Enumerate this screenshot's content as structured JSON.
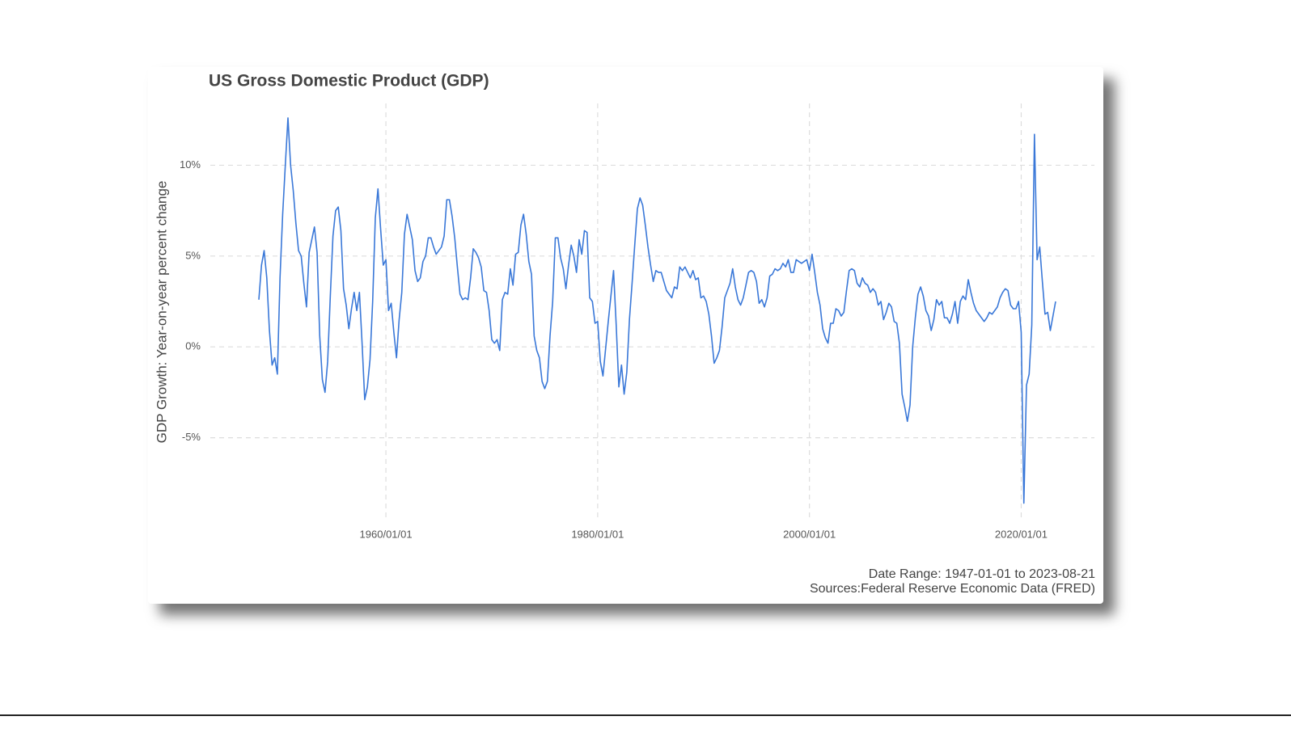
{
  "chart_data": {
    "type": "line",
    "title": "US Gross Domestic Product (GDP)",
    "y_label": "GDP Growth: Year-on-year percent change",
    "caption": [
      "Date Range: 1947-01-01 to 2023-08-21",
      "Sources:Federal Reserve Economic Data (FRED)"
    ],
    "color": "#3a78d8",
    "grid": true,
    "xlim": [
      "1943/06/01",
      "2026/12/01"
    ],
    "xticks": [
      "1960/01/01",
      "1980/01/01",
      "2000/01/01",
      "2020/01/01"
    ],
    "ylim": [
      -9.6,
      13.4
    ],
    "yticks": [
      {
        "value": -5,
        "label": "-5%"
      },
      {
        "value": 0,
        "label": "0%"
      },
      {
        "value": 5,
        "label": "5%"
      },
      {
        "value": 10,
        "label": "10%"
      }
    ],
    "x": [
      "1948/01/01",
      "1948/04/01",
      "1948/07/01",
      "1948/10/01",
      "1949/01/01",
      "1949/04/01",
      "1949/07/01",
      "1949/10/01",
      "1950/01/01",
      "1950/04/01",
      "1950/07/01",
      "1950/10/01",
      "1951/01/01",
      "1951/04/01",
      "1951/07/01",
      "1951/10/01",
      "1952/01/01",
      "1952/04/01",
      "1952/07/01",
      "1952/10/01",
      "1953/01/01",
      "1953/04/01",
      "1953/07/01",
      "1953/10/01",
      "1954/01/01",
      "1954/04/01",
      "1954/07/01",
      "1954/10/01",
      "1955/01/01",
      "1955/04/01",
      "1955/07/01",
      "1955/10/01",
      "1956/01/01",
      "1956/04/01",
      "1956/07/01",
      "1956/10/01",
      "1957/01/01",
      "1957/04/01",
      "1957/07/01",
      "1957/10/01",
      "1958/01/01",
      "1958/04/01",
      "1958/07/01",
      "1958/10/01",
      "1959/01/01",
      "1959/04/01",
      "1959/07/01",
      "1959/10/01",
      "1960/01/01",
      "1960/04/01",
      "1960/07/01",
      "1960/10/01",
      "1961/01/01",
      "1961/04/01",
      "1961/07/01",
      "1961/10/01",
      "1962/01/01",
      "1962/04/01",
      "1962/07/01",
      "1962/10/01",
      "1963/01/01",
      "1963/04/01",
      "1963/07/01",
      "1963/10/01",
      "1964/01/01",
      "1964/04/01",
      "1964/07/01",
      "1964/10/01",
      "1965/01/01",
      "1965/04/01",
      "1965/07/01",
      "1965/10/01",
      "1966/01/01",
      "1966/04/01",
      "1966/07/01",
      "1966/10/01",
      "1967/01/01",
      "1967/04/01",
      "1967/07/01",
      "1967/10/01",
      "1968/01/01",
      "1968/04/01",
      "1968/07/01",
      "1968/10/01",
      "1969/01/01",
      "1969/04/01",
      "1969/07/01",
      "1969/10/01",
      "1970/01/01",
      "1970/04/01",
      "1970/07/01",
      "1970/10/01",
      "1971/01/01",
      "1971/04/01",
      "1971/07/01",
      "1971/10/01",
      "1972/01/01",
      "1972/04/01",
      "1972/07/01",
      "1972/10/01",
      "1973/01/01",
      "1973/04/01",
      "1973/07/01",
      "1973/10/01",
      "1974/01/01",
      "1974/04/01",
      "1974/07/01",
      "1974/10/01",
      "1975/01/01",
      "1975/04/01",
      "1975/07/01",
      "1975/10/01",
      "1976/01/01",
      "1976/04/01",
      "1976/07/01",
      "1976/10/01",
      "1977/01/01",
      "1977/04/01",
      "1977/07/01",
      "1977/10/01",
      "1978/01/01",
      "1978/04/01",
      "1978/07/01",
      "1978/10/01",
      "1979/01/01",
      "1979/04/01",
      "1979/07/01",
      "1979/10/01",
      "1980/01/01",
      "1980/04/01",
      "1980/07/01",
      "1980/10/01",
      "1981/01/01",
      "1981/04/01",
      "1981/07/01",
      "1981/10/01",
      "1982/01/01",
      "1982/04/01",
      "1982/07/01",
      "1982/10/01",
      "1983/01/01",
      "1983/04/01",
      "1983/07/01",
      "1983/10/01",
      "1984/01/01",
      "1984/04/01",
      "1984/07/01",
      "1984/10/01",
      "1985/01/01",
      "1985/04/01",
      "1985/07/01",
      "1985/10/01",
      "1986/01/01",
      "1986/04/01",
      "1986/07/01",
      "1986/10/01",
      "1987/01/01",
      "1987/04/01",
      "1987/07/01",
      "1987/10/01",
      "1988/01/01",
      "1988/04/01",
      "1988/07/01",
      "1988/10/01",
      "1989/01/01",
      "1989/04/01",
      "1989/07/01",
      "1989/10/01",
      "1990/01/01",
      "1990/04/01",
      "1990/07/01",
      "1990/10/01",
      "1991/01/01",
      "1991/04/01",
      "1991/07/01",
      "1991/10/01",
      "1992/01/01",
      "1992/04/01",
      "1992/07/01",
      "1992/10/01",
      "1993/01/01",
      "1993/04/01",
      "1993/07/01",
      "1993/10/01",
      "1994/01/01",
      "1994/04/01",
      "1994/07/01",
      "1994/10/01",
      "1995/01/01",
      "1995/04/01",
      "1995/07/01",
      "1995/10/01",
      "1996/01/01",
      "1996/04/01",
      "1996/07/01",
      "1996/10/01",
      "1997/01/01",
      "1997/04/01",
      "1997/07/01",
      "1997/10/01",
      "1998/01/01",
      "1998/04/01",
      "1998/07/01",
      "1998/10/01",
      "1999/01/01",
      "1999/04/01",
      "1999/07/01",
      "1999/10/01",
      "2000/01/01",
      "2000/04/01",
      "2000/07/01",
      "2000/10/01",
      "2001/01/01",
      "2001/04/01",
      "2001/07/01",
      "2001/10/01",
      "2002/01/01",
      "2002/04/01",
      "2002/07/01",
      "2002/10/01",
      "2003/01/01",
      "2003/04/01",
      "2003/07/01",
      "2003/10/01",
      "2004/01/01",
      "2004/04/01",
      "2004/07/01",
      "2004/10/01",
      "2005/01/01",
      "2005/04/01",
      "2005/07/01",
      "2005/10/01",
      "2006/01/01",
      "2006/04/01",
      "2006/07/01",
      "2006/10/01",
      "2007/01/01",
      "2007/04/01",
      "2007/07/01",
      "2007/10/01",
      "2008/01/01",
      "2008/04/01",
      "2008/07/01",
      "2008/10/01",
      "2009/01/01",
      "2009/04/01",
      "2009/07/01",
      "2009/10/01",
      "2010/01/01",
      "2010/04/01",
      "2010/07/01",
      "2010/10/01",
      "2011/01/01",
      "2011/04/01",
      "2011/07/01",
      "2011/10/01",
      "2012/01/01",
      "2012/04/01",
      "2012/07/01",
      "2012/10/01",
      "2013/01/01",
      "2013/04/01",
      "2013/07/01",
      "2013/10/01",
      "2014/01/01",
      "2014/04/01",
      "2014/07/01",
      "2014/10/01",
      "2015/01/01",
      "2015/04/01",
      "2015/07/01",
      "2015/10/01",
      "2016/01/01",
      "2016/04/01",
      "2016/07/01",
      "2016/10/01",
      "2017/01/01",
      "2017/04/01",
      "2017/07/01",
      "2017/10/01",
      "2018/01/01",
      "2018/04/01",
      "2018/07/01",
      "2018/10/01",
      "2019/01/01",
      "2019/04/01",
      "2019/07/01",
      "2019/10/01",
      "2020/01/01",
      "2020/04/01",
      "2020/07/01",
      "2020/10/01",
      "2021/01/01",
      "2021/04/01",
      "2021/07/01",
      "2021/10/01",
      "2022/01/01",
      "2022/04/01",
      "2022/07/01",
      "2022/10/01",
      "2023/01/01",
      "2023/04/01"
    ],
    "values": [
      2.6,
      4.5,
      5.3,
      3.8,
      0.9,
      -1.0,
      -0.6,
      -1.5,
      3.8,
      7.3,
      10.0,
      12.6,
      10.0,
      8.6,
      6.8,
      5.3,
      5.0,
      3.5,
      2.2,
      5.2,
      5.9,
      6.6,
      5.2,
      0.6,
      -1.8,
      -2.5,
      -0.8,
      2.8,
      6.1,
      7.5,
      7.7,
      6.4,
      3.2,
      2.3,
      1.0,
      2.1,
      3.0,
      2.0,
      3.0,
      0.2,
      -2.9,
      -2.2,
      -0.7,
      2.5,
      7.1,
      8.7,
      6.5,
      4.5,
      4.8,
      2.0,
      2.4,
      0.8,
      -0.6,
      1.5,
      3.0,
      6.2,
      7.3,
      6.6,
      5.9,
      4.2,
      3.6,
      3.8,
      4.7,
      5.0,
      6.0,
      6.0,
      5.5,
      5.1,
      5.3,
      5.5,
      6.1,
      8.1,
      8.1,
      7.2,
      6.0,
      4.4,
      2.9,
      2.6,
      2.7,
      2.6,
      3.8,
      5.4,
      5.2,
      4.9,
      4.4,
      3.1,
      3.0,
      2.0,
      0.4,
      0.2,
      0.4,
      -0.2,
      2.6,
      3.0,
      2.9,
      4.3,
      3.4,
      5.1,
      5.2,
      6.7,
      7.3,
      6.2,
      4.7,
      4.0,
      0.6,
      -0.2,
      -0.6,
      -1.9,
      -2.3,
      -1.9,
      0.6,
      2.5,
      6.0,
      6.0,
      4.9,
      4.3,
      3.2,
      4.5,
      5.6,
      5.0,
      4.1,
      5.9,
      5.1,
      6.4,
      6.3,
      2.7,
      2.5,
      1.3,
      1.4,
      -0.8,
      -1.6,
      -0.1,
      1.4,
      2.8,
      4.2,
      1.2,
      -2.2,
      -1.0,
      -2.6,
      -1.4,
      1.5,
      3.5,
      5.6,
      7.6,
      8.2,
      7.8,
      6.7,
      5.5,
      4.5,
      3.6,
      4.2,
      4.1,
      4.1,
      3.6,
      3.1,
      2.9,
      2.7,
      3.3,
      3.2,
      4.4,
      4.2,
      4.4,
      4.1,
      3.8,
      4.2,
      3.7,
      3.8,
      2.7,
      2.8,
      2.5,
      1.8,
      0.6,
      -0.9,
      -0.6,
      -0.2,
      1.1,
      2.7,
      3.1,
      3.5,
      4.3,
      3.3,
      2.6,
      2.3,
      2.7,
      3.4,
      4.1,
      4.2,
      4.1,
      3.6,
      2.4,
      2.6,
      2.2,
      2.7,
      3.9,
      4.0,
      4.3,
      4.2,
      4.3,
      4.6,
      4.4,
      4.8,
      4.1,
      4.1,
      4.8,
      4.7,
      4.6,
      4.7,
      4.8,
      4.2,
      5.1,
      4.1,
      3.0,
      2.3,
      1.0,
      0.5,
      0.2,
      1.3,
      1.3,
      2.1,
      2.0,
      1.7,
      1.9,
      3.1,
      4.2,
      4.3,
      4.2,
      3.5,
      3.3,
      3.8,
      3.5,
      3.4,
      3.0,
      3.2,
      3.0,
      2.3,
      2.5,
      1.5,
      1.9,
      2.4,
      2.2,
      1.4,
      1.3,
      0.2,
      -2.6,
      -3.3,
      -4.1,
      -3.2,
      0.0,
      1.6,
      2.9,
      3.3,
      2.8,
      2.0,
      1.7,
      0.9,
      1.5,
      2.6,
      2.3,
      2.5,
      1.6,
      1.6,
      1.3,
      1.8,
      2.5,
      1.3,
      2.5,
      2.8,
      2.6,
      3.7,
      3.0,
      2.4,
      2.0,
      1.8,
      1.6,
      1.4,
      1.6,
      1.9,
      1.8,
      2.0,
      2.2,
      2.7,
      3.0,
      3.2,
      3.1,
      2.3,
      2.1,
      2.1,
      2.5,
      0.8,
      -8.6,
      -2.1,
      -1.5,
      1.2,
      11.7,
      4.8,
      5.5,
      3.6,
      1.8,
      1.9,
      0.9,
      1.7,
      2.5
    ]
  }
}
